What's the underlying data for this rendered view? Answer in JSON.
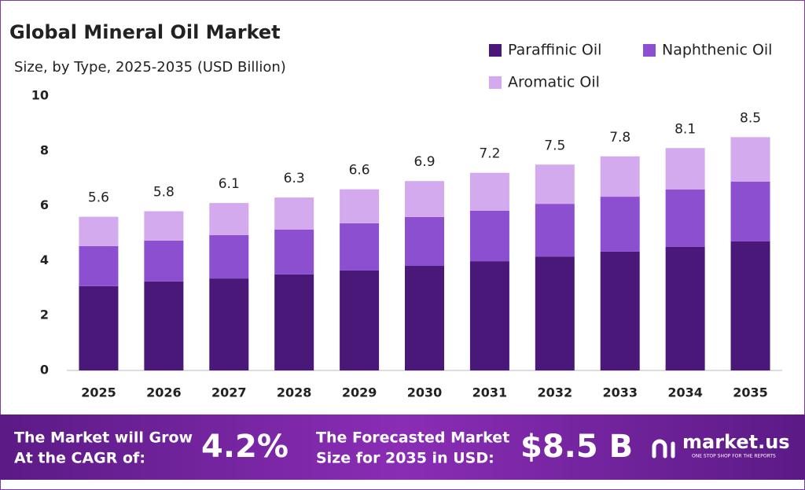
{
  "chart_data": {
    "type": "stacked_bar",
    "title": "Global Mineral Oil Market",
    "subtitle": "Size, by Type, 2025-2035 (USD Billion)",
    "categories": [
      "2025",
      "2026",
      "2027",
      "2028",
      "2029",
      "2030",
      "2031",
      "2032",
      "2033",
      "2034",
      "2035"
    ],
    "series": [
      {
        "name": "Paraffinic Oil",
        "color": "#4a1878",
        "values": [
          3.07,
          3.24,
          3.35,
          3.5,
          3.64,
          3.81,
          3.98,
          4.15,
          4.33,
          4.5,
          4.7
        ]
      },
      {
        "name": "Naphthenic Oil",
        "color": "#8b4fcf",
        "values": [
          1.46,
          1.49,
          1.58,
          1.63,
          1.72,
          1.78,
          1.84,
          1.92,
          2.0,
          2.09,
          2.18
        ]
      },
      {
        "name": "Aromatic Oil",
        "color": "#d3aaee",
        "values": [
          1.07,
          1.07,
          1.17,
          1.17,
          1.24,
          1.31,
          1.38,
          1.43,
          1.47,
          1.51,
          1.62
        ]
      }
    ],
    "totals": [
      5.6,
      5.8,
      6.1,
      6.3,
      6.6,
      6.9,
      7.2,
      7.5,
      7.8,
      8.1,
      8.5
    ],
    "ylim": [
      0,
      10
    ],
    "yticks": [
      0,
      2,
      4,
      6,
      8,
      10
    ],
    "grid": false
  },
  "footer": {
    "cagr_text": [
      "The Market will Grow",
      "At the CAGR of:"
    ],
    "cagr_value": "4.2%",
    "forecast_text": [
      "The Forecasted Market",
      "Size for 2035 in USD:"
    ],
    "forecast_value": "$8.5 B",
    "brand": "market.us",
    "tagline": "ONE STOP SHOP FOR THE REPORTS"
  }
}
